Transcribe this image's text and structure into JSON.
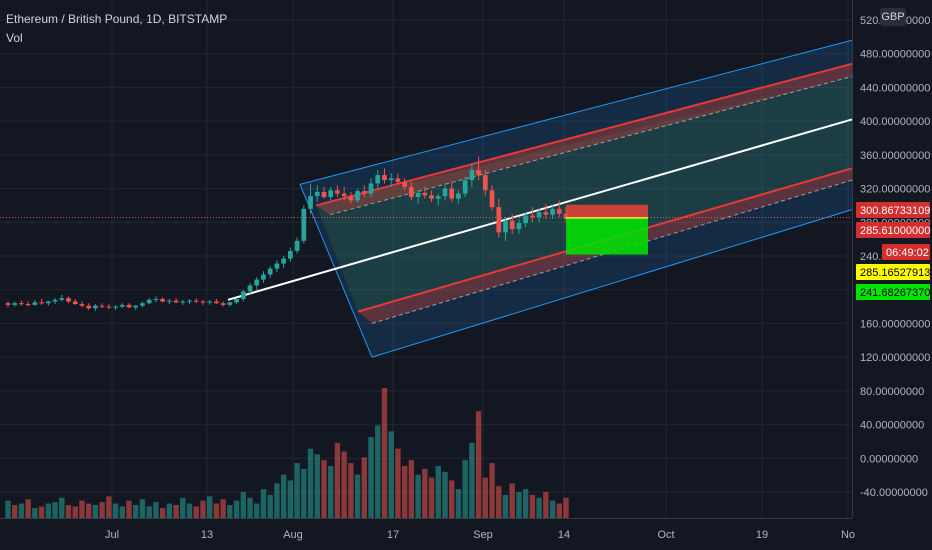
{
  "header": {
    "title": "Ethereum / British Pound, 1D, BITSTAMP",
    "volume_label": "Vol",
    "currency": "GBP"
  },
  "chart_data": {
    "type": "candlestick",
    "y_ticks": [
      "520.00000000",
      "480.00000000",
      "440.00000000",
      "400.00000000",
      "360.00000000",
      "320.00000000",
      "280.00000000",
      "240.00000000",
      "200.00000000",
      "160.00000000",
      "120.00000000",
      "80.00000000",
      "40.00000000",
      "0.00000000",
      "-40.00000000"
    ],
    "x_ticks": [
      "Jul",
      "13",
      "Aug",
      "17",
      "Sep",
      "14",
      "Oct",
      "19",
      "No"
    ],
    "price_labels": [
      {
        "value": "300.86733109",
        "bg": "#d32f2f",
        "fg": "#ffffff"
      },
      {
        "value": "285.61000000",
        "bg": "#d32f2f",
        "fg": "#ffffff"
      },
      {
        "value": "06:49:02",
        "bg": "#d32f2f",
        "fg": "#ffffff"
      },
      {
        "value": "285.16527913",
        "bg": "#ffff00",
        "fg": "#000000"
      },
      {
        "value": "241.68267370",
        "bg": "#00e600",
        "fg": "#000000"
      }
    ],
    "ohlc": [
      [
        184,
        186,
        179,
        182
      ],
      [
        182,
        186,
        180,
        184
      ],
      [
        184,
        187,
        181,
        183
      ],
      [
        183,
        186,
        180,
        182
      ],
      [
        182,
        188,
        181,
        185
      ],
      [
        185,
        189,
        182,
        184
      ],
      [
        184,
        187,
        181,
        186
      ],
      [
        186,
        190,
        183,
        188
      ],
      [
        188,
        194,
        186,
        190
      ],
      [
        190,
        192,
        184,
        186
      ],
      [
        186,
        189,
        182,
        183
      ],
      [
        183,
        186,
        179,
        181
      ],
      [
        181,
        184,
        176,
        178
      ],
      [
        178,
        183,
        175,
        181
      ],
      [
        181,
        184,
        178,
        180
      ],
      [
        180,
        183,
        177,
        179
      ],
      [
        179,
        182,
        176,
        180
      ],
      [
        180,
        184,
        178,
        182
      ],
      [
        182,
        184,
        178,
        179
      ],
      [
        179,
        182,
        176,
        181
      ],
      [
        181,
        186,
        179,
        184
      ],
      [
        184,
        190,
        183,
        188
      ],
      [
        188,
        192,
        185,
        189
      ],
      [
        189,
        191,
        185,
        186
      ],
      [
        186,
        189,
        183,
        187
      ],
      [
        187,
        190,
        184,
        185
      ],
      [
        185,
        188,
        182,
        186
      ],
      [
        186,
        189,
        183,
        187
      ],
      [
        187,
        190,
        184,
        186
      ],
      [
        186,
        188,
        182,
        185
      ],
      [
        185,
        188,
        182,
        186
      ],
      [
        186,
        189,
        183,
        184
      ],
      [
        184,
        186,
        180,
        182
      ],
      [
        182,
        186,
        180,
        185
      ],
      [
        185,
        190,
        183,
        189
      ],
      [
        189,
        200,
        186,
        198
      ],
      [
        198,
        208,
        195,
        205
      ],
      [
        205,
        215,
        200,
        212
      ],
      [
        212,
        222,
        208,
        218
      ],
      [
        218,
        228,
        214,
        225
      ],
      [
        225,
        235,
        221,
        231
      ],
      [
        231,
        240,
        226,
        237
      ],
      [
        237,
        250,
        233,
        246
      ],
      [
        246,
        262,
        243,
        258
      ],
      [
        258,
        300,
        255,
        296
      ],
      [
        296,
        326,
        290,
        311
      ],
      [
        311,
        324,
        304,
        316
      ],
      [
        316,
        322,
        308,
        310
      ],
      [
        310,
        322,
        306,
        318
      ],
      [
        318,
        324,
        310,
        314
      ],
      [
        314,
        322,
        306,
        311
      ],
      [
        311,
        316,
        302,
        306
      ],
      [
        306,
        320,
        303,
        317
      ],
      [
        317,
        324,
        310,
        314
      ],
      [
        314,
        332,
        310,
        326
      ],
      [
        326,
        342,
        320,
        336
      ],
      [
        336,
        344,
        326,
        330
      ],
      [
        330,
        338,
        322,
        332
      ],
      [
        332,
        338,
        324,
        328
      ],
      [
        328,
        332,
        318,
        322
      ],
      [
        322,
        328,
        306,
        310
      ],
      [
        310,
        318,
        302,
        315
      ],
      [
        315,
        322,
        308,
        312
      ],
      [
        312,
        318,
        304,
        308
      ],
      [
        308,
        314,
        300,
        311
      ],
      [
        311,
        324,
        306,
        320
      ],
      [
        320,
        328,
        304,
        308
      ],
      [
        308,
        318,
        302,
        314
      ],
      [
        314,
        334,
        310,
        330
      ],
      [
        330,
        350,
        322,
        342
      ],
      [
        342,
        358,
        330,
        336
      ],
      [
        336,
        342,
        312,
        318
      ],
      [
        318,
        324,
        294,
        298
      ],
      [
        298,
        308,
        262,
        268
      ],
      [
        268,
        286,
        258,
        282
      ],
      [
        282,
        290,
        266,
        272
      ],
      [
        272,
        284,
        266,
        279
      ],
      [
        279,
        292,
        274,
        288
      ],
      [
        288,
        298,
        280,
        286
      ],
      [
        286,
        296,
        280,
        292
      ],
      [
        292,
        302,
        284,
        289
      ],
      [
        289,
        300,
        284,
        296
      ],
      [
        296,
        306,
        286,
        290
      ],
      [
        290,
        298,
        280,
        284
      ]
    ],
    "volume": [
      12,
      9,
      10,
      13,
      7,
      8,
      10,
      11,
      14,
      9,
      8,
      12,
      10,
      9,
      11,
      15,
      10,
      8,
      12,
      9,
      13,
      8,
      11,
      7,
      10,
      9,
      14,
      10,
      8,
      12,
      15,
      10,
      13,
      9,
      12,
      18,
      14,
      10,
      20,
      16,
      24,
      30,
      26,
      38,
      34,
      48,
      44,
      40,
      36,
      52,
      46,
      38,
      30,
      42,
      56,
      64,
      90,
      60,
      48,
      36,
      40,
      30,
      34,
      28,
      36,
      32,
      26,
      20,
      40,
      52,
      74,
      28,
      38,
      22,
      16,
      24,
      18,
      20,
      16,
      14,
      18,
      12,
      10,
      14
    ],
    "volume_up": [
      true,
      false,
      true,
      false,
      true,
      false,
      true,
      true,
      true,
      false,
      false,
      false,
      false,
      true,
      false,
      false,
      true,
      true,
      false,
      true,
      true,
      true,
      true,
      false,
      true,
      false,
      true,
      true,
      false,
      false,
      true,
      false,
      false,
      true,
      true,
      true,
      true,
      true,
      true,
      true,
      true,
      true,
      true,
      true,
      true,
      true,
      true,
      false,
      true,
      false,
      false,
      false,
      true,
      false,
      true,
      true,
      false,
      true,
      false,
      false,
      false,
      true,
      false,
      false,
      true,
      true,
      false,
      true,
      true,
      true,
      false,
      false,
      false,
      false,
      true,
      false,
      true,
      true,
      false,
      true,
      false,
      true,
      false,
      false
    ]
  }
}
